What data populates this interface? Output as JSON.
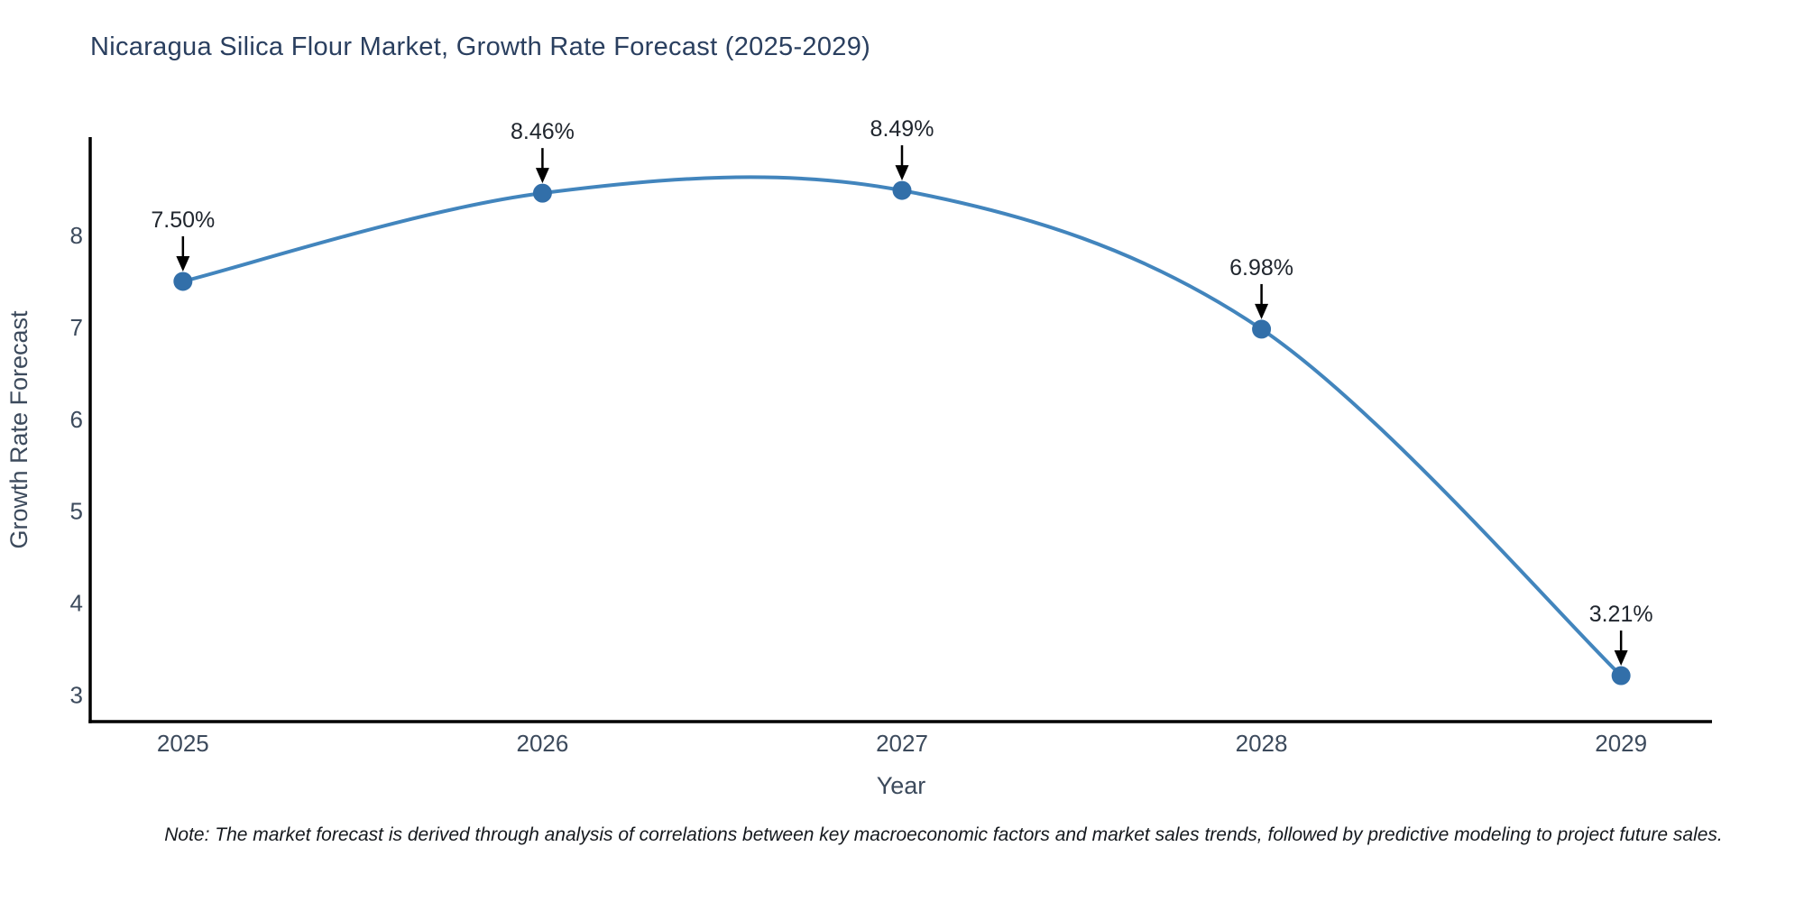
{
  "title": "Nicaragua Silica Flour Market, Growth Rate Forecast (2025-2029)",
  "note": "Note: The market forecast is derived through analysis of correlations between key macroeconomic factors and market sales trends, followed by predictive modeling to project future sales.",
  "chart_data": {
    "type": "line",
    "title": "Nicaragua Silica Flour Market, Growth Rate Forecast (2025-2029)",
    "xlabel": "Year",
    "ylabel": "Growth Rate Forecast",
    "x": [
      2025,
      2026,
      2027,
      2028,
      2029
    ],
    "categories": [
      "2025",
      "2026",
      "2027",
      "2028",
      "2029"
    ],
    "series": [
      {
        "name": "Growth Rate Forecast",
        "values": [
          7.5,
          8.46,
          8.49,
          6.98,
          3.21
        ]
      }
    ],
    "point_labels": [
      "7.50%",
      "8.46%",
      "8.49%",
      "6.98%",
      "3.21%"
    ],
    "yticks": [
      3,
      4,
      5,
      6,
      7,
      8
    ],
    "ytick_labels": [
      "3",
      "4",
      "5",
      "6",
      "7",
      "8"
    ],
    "xlim": [
      2024.742,
      2029.253
    ],
    "ylim": [
      2.71,
      9.06
    ],
    "grid": false,
    "legend": "none",
    "line_style": "spline",
    "colors": {
      "line": "#4285bd",
      "marker": "#326fa9",
      "axis": "#000000",
      "title": "#2a3f5f",
      "tick": "#3c4a5c",
      "annotation": "#20262e",
      "arrow": "#000000",
      "background": "#ffffff"
    }
  }
}
